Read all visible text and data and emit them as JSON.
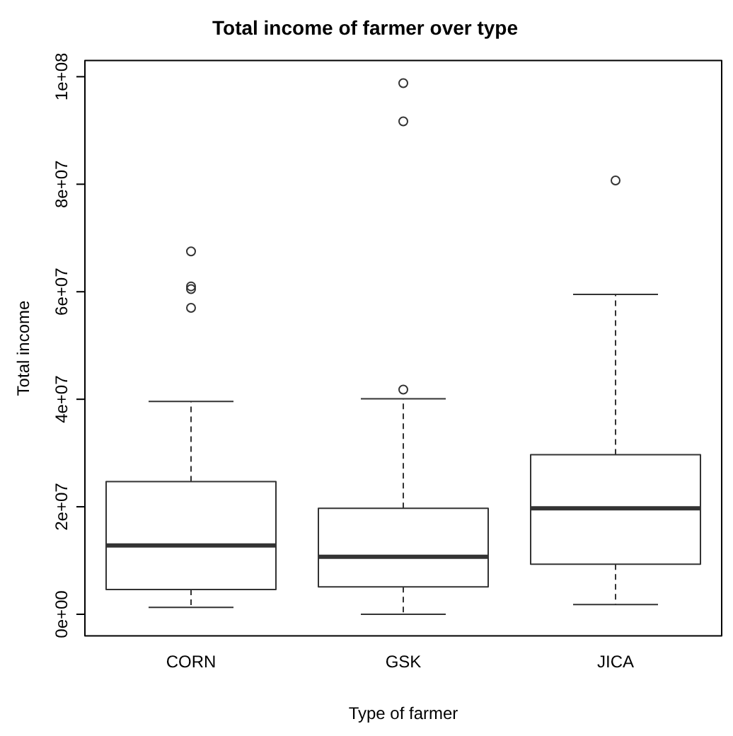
{
  "chart_data": {
    "type": "box",
    "title": "Total income of farmer over type",
    "xlabel": "Type of farmer",
    "ylabel": "Total income",
    "categories": [
      "CORN",
      "GSK",
      "JICA"
    ],
    "boxes": [
      {
        "low": 1300000,
        "q1": 4600000,
        "median": 12800000,
        "q3": 24700000,
        "high": 39600000,
        "outliers": [
          67500000,
          61000000,
          60500000,
          57000000
        ]
      },
      {
        "low": 0,
        "q1": 5100000,
        "median": 10700000,
        "q3": 19700000,
        "high": 40100000,
        "outliers": [
          98800000,
          91700000,
          41800000
        ]
      },
      {
        "low": 1800000,
        "q1": 9300000,
        "median": 19700000,
        "q3": 29700000,
        "high": 59500000,
        "outliers": [
          80700000
        ]
      }
    ],
    "color": "#333333",
    "ylim": [
      -4000000,
      103000000
    ],
    "yticks": [
      {
        "value": 0,
        "label": "0e+00"
      },
      {
        "value": 20000000,
        "label": "2e+07"
      },
      {
        "value": 40000000,
        "label": "4e+07"
      },
      {
        "value": 60000000,
        "label": "6e+07"
      },
      {
        "value": 80000000,
        "label": "8e+07"
      },
      {
        "value": 100000000,
        "label": "1e+08"
      }
    ],
    "grid": false,
    "legend": false,
    "marker": "circle",
    "line_style": "dashed"
  }
}
